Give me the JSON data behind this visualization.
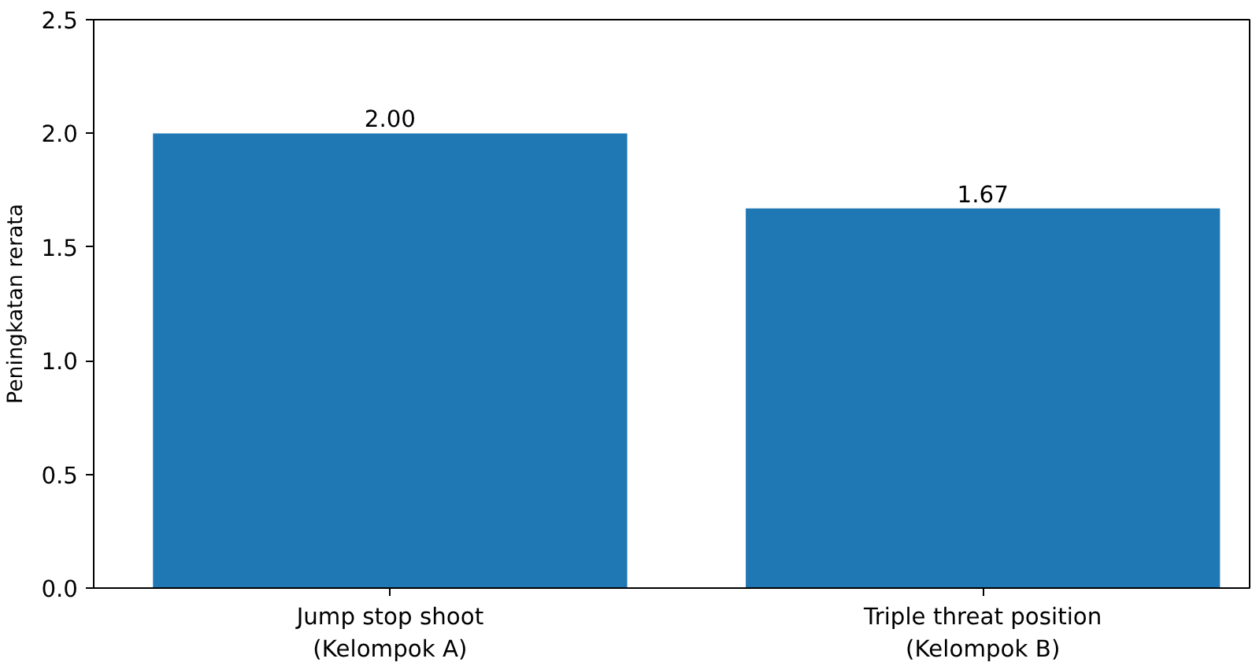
{
  "chart_data": {
    "type": "bar",
    "ylabel": "Peningkatan rerata",
    "categories": [
      "Jump stop shoot\n(Kelompok A)",
      "Triple threat position\n(Kelompok B)"
    ],
    "values": [
      2.0,
      1.67
    ],
    "value_labels": [
      "2.00",
      "1.67"
    ],
    "color": "#1f77b4",
    "ylim": [
      0,
      2.5
    ],
    "yticks": [
      {
        "value": 0,
        "label": "0.0"
      },
      0.5,
      {
        "value": 1,
        "label": "1.0"
      },
      1.5,
      {
        "value": 2,
        "label": "2.0"
      },
      2.5
    ],
    "grid": false
  }
}
